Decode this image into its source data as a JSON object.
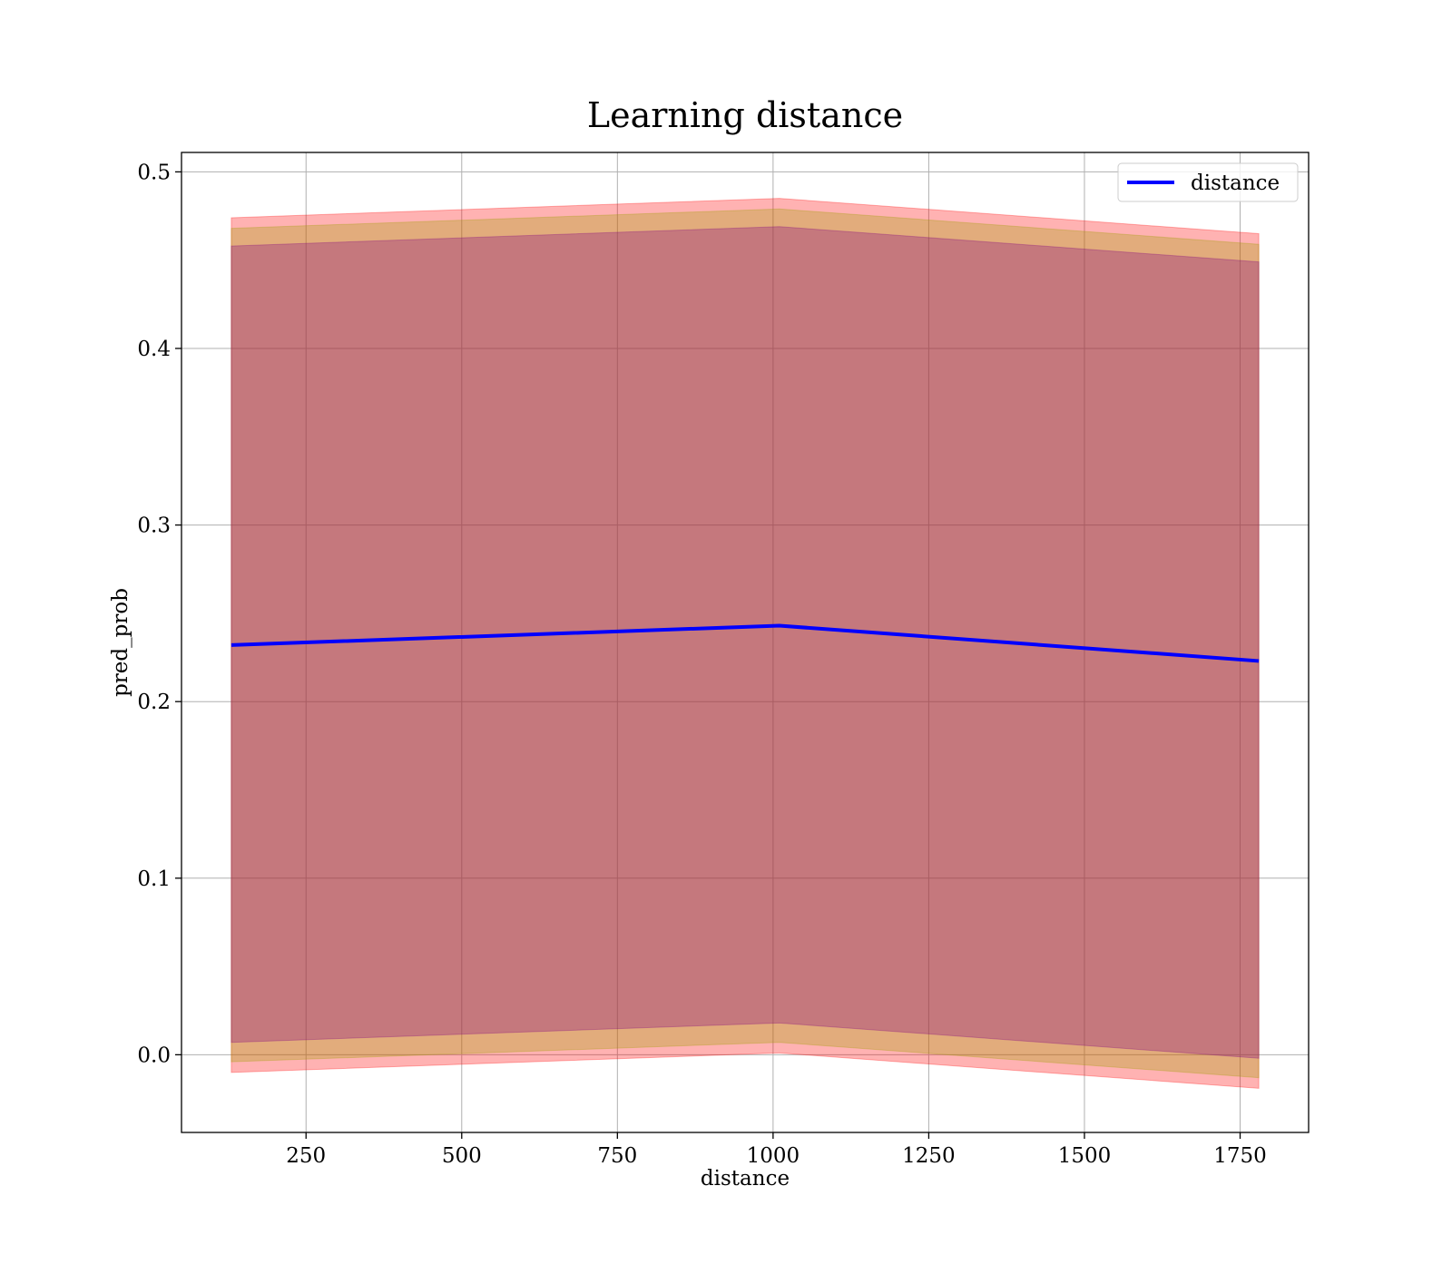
{
  "chart_data": {
    "type": "line",
    "title": "Learning distance",
    "xlabel": "distance",
    "ylabel": "pred_prob",
    "xlim": [
      50,
      1860
    ],
    "ylim": [
      -0.044,
      0.511
    ],
    "x_ticks": [
      250,
      500,
      750,
      1000,
      1250,
      1500,
      1750
    ],
    "y_ticks": [
      0.0,
      0.1,
      0.2,
      0.3,
      0.4,
      0.5
    ],
    "y_tick_labels": [
      "0.0",
      "0.1",
      "0.2",
      "0.3",
      "0.4",
      "0.5"
    ],
    "grid": true,
    "legend_position": "top-right",
    "x": [
      130,
      1010,
      1780
    ],
    "series": [
      {
        "name": "distance",
        "values": [
          0.232,
          0.243,
          0.223
        ],
        "color": "#0000ff"
      }
    ],
    "bands": [
      {
        "lower": [
          -0.01,
          0.001,
          -0.019
        ],
        "upper": [
          0.474,
          0.485,
          0.465
        ],
        "color": "#ff0000",
        "opacity": 0.3
      },
      {
        "lower": [
          -0.004,
          0.007,
          -0.013
        ],
        "upper": [
          0.468,
          0.479,
          0.459
        ],
        "color": "#a0a000",
        "opacity": 0.3
      },
      {
        "lower": [
          0.007,
          0.018,
          -0.002
        ],
        "upper": [
          0.458,
          0.469,
          0.449
        ],
        "color": "#800080",
        "opacity": 0.3
      }
    ]
  }
}
